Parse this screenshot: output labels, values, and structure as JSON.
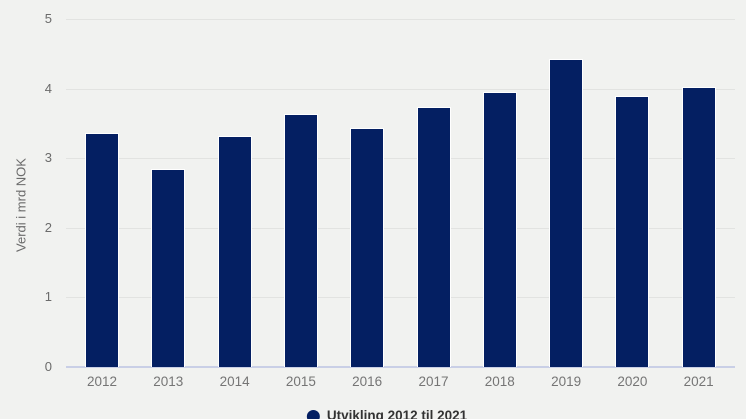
{
  "chart_data": {
    "type": "bar",
    "categories": [
      "2012",
      "2013",
      "2014",
      "2015",
      "2016",
      "2017",
      "2018",
      "2019",
      "2020",
      "2021"
    ],
    "values": [
      3.36,
      2.84,
      3.32,
      3.64,
      3.43,
      3.74,
      3.95,
      4.43,
      3.9,
      4.03
    ],
    "series_name": "Utvikling 2012 til 2021",
    "title": "",
    "xlabel": "",
    "ylabel": "Verdi i mrd NOK",
    "ylim": [
      0,
      5
    ],
    "yticks": [
      0,
      1,
      2,
      3,
      4,
      5
    ],
    "grid": true,
    "legend_position": "bottom-center",
    "colors": {
      "bar": "#041f62",
      "bar_outline": "#ffffff",
      "background": "#f1f2f0",
      "gridline": "#e2e3e1",
      "axis_line": "#c9cfe6",
      "tick_label": "#6b6b6b",
      "legend_text": "#333333"
    }
  },
  "y_axis": {
    "title": "Verdi i mrd NOK"
  },
  "legend": {
    "label": "Utvikling 2012 til 2021"
  }
}
